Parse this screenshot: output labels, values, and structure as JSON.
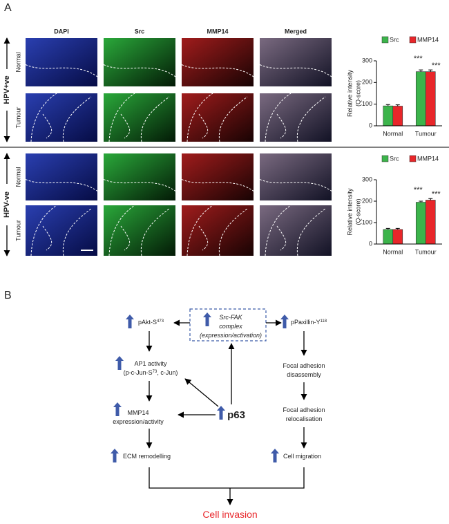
{
  "panels": {
    "a": "A",
    "b": "B"
  },
  "images": {
    "columns": [
      {
        "label": "DAPI",
        "color": "#2b4fbf"
      },
      {
        "label": "Src",
        "color": "#1a9a3a"
      },
      {
        "label": "MMP14",
        "color": "#d8262a"
      },
      {
        "label": "Merged",
        "color": "#222222"
      }
    ],
    "groups": [
      {
        "label": "HPV+ve",
        "rows": [
          "Normal",
          "Tumour"
        ]
      },
      {
        "label": "HPV-ve",
        "rows": [
          "Normal",
          "Tumour"
        ]
      }
    ]
  },
  "chart_data": [
    {
      "type": "bar",
      "categories": [
        "Normal",
        "Tumour"
      ],
      "y_label": [
        "Relative intensity",
        "(Q-score)"
      ],
      "ylim": [
        0,
        300
      ],
      "yticks": [
        0,
        100,
        200,
        300
      ],
      "series": [
        {
          "name": "Src",
          "color": "#3cb44b",
          "values": [
            92,
            250
          ],
          "errors": [
            6,
            8
          ],
          "significance": [
            null,
            "***"
          ]
        },
        {
          "name": "MMP14",
          "color": "#e8262a",
          "values": [
            91,
            250
          ],
          "errors": [
            6,
            8
          ],
          "significance": [
            null,
            "***"
          ]
        }
      ]
    },
    {
      "type": "bar",
      "categories": [
        "Normal",
        "Tumour"
      ],
      "y_label": [
        "Relative intensity",
        "(Q-score)"
      ],
      "ylim": [
        0,
        300
      ],
      "yticks": [
        0,
        100,
        200,
        300
      ],
      "series": [
        {
          "name": "Src",
          "color": "#3cb44b",
          "values": [
            68,
            195
          ],
          "errors": [
            5,
            5
          ],
          "significance": [
            null,
            "***"
          ]
        },
        {
          "name": "MMP14",
          "color": "#e8262a",
          "values": [
            68,
            205
          ],
          "errors": [
            5,
            7
          ],
          "significance": [
            null,
            "***"
          ]
        }
      ]
    }
  ],
  "diagram": {
    "nodes": [
      {
        "lines": [
          [
            {
              "text": "Src-FAK"
            }
          ],
          [
            {
              "text": "complex"
            }
          ],
          [
            {
              "text": "(expression/activation)"
            }
          ]
        ],
        "style": "italic"
      },
      {
        "lines": [
          [
            {
              "text": "pAkt-S"
            },
            {
              "text": "473",
              "sup": true
            }
          ]
        ]
      },
      {
        "lines": [
          [
            {
              "text": "pPaxillin-Y"
            },
            {
              "text": "118",
              "sup": true
            }
          ]
        ]
      },
      {
        "lines": [
          [
            {
              "text": "AP1 activity"
            }
          ],
          [
            {
              "text": "(p-c-Jun-S"
            },
            {
              "text": "73",
              "sup": true
            },
            {
              "text": ", c-Jun)"
            }
          ]
        ]
      },
      {
        "lines": [
          [
            {
              "text": "MMP14"
            }
          ],
          [
            {
              "text": "expression/activity"
            }
          ]
        ]
      },
      {
        "lines": [
          [
            {
              "text": "p63"
            }
          ]
        ],
        "style": "bold"
      },
      {
        "lines": [
          [
            {
              "text": "ECM remodelling"
            }
          ]
        ]
      },
      {
        "lines": [
          [
            {
              "text": "Focal adhesion"
            }
          ],
          [
            {
              "text": "disassembly"
            }
          ]
        ]
      },
      {
        "lines": [
          [
            {
              "text": "Focal adhesion"
            }
          ],
          [
            {
              "text": "relocalisation"
            }
          ]
        ]
      },
      {
        "lines": [
          [
            {
              "text": "Cell migration"
            }
          ]
        ]
      },
      {
        "lines": [
          [
            {
              "text": "Cell invasion"
            }
          ]
        ],
        "color": "#e8262a"
      }
    ]
  }
}
